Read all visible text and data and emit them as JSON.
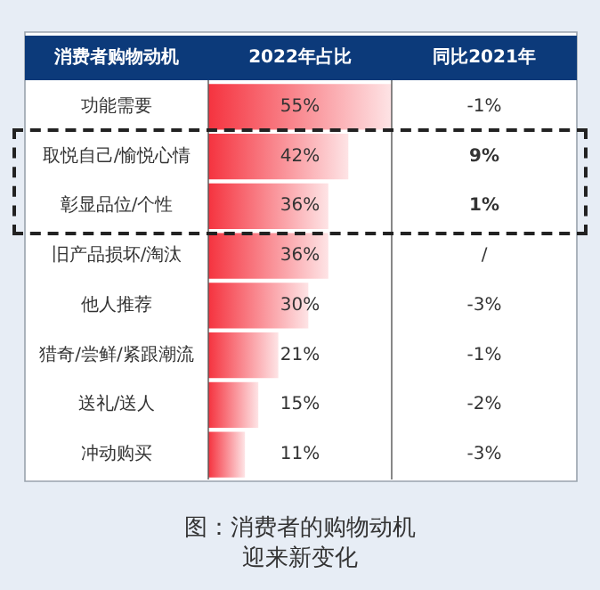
{
  "chart_data": {
    "type": "bar",
    "orientation": "horizontal",
    "title": "图：消费者的购物动机迎来新变化",
    "ylabel": "消费者购物动机",
    "xlabel": "2022年占比",
    "categories": [
      "功能需要",
      "取悦自己/愉悦心情",
      "彰显品位/个性",
      "旧产品损坏/淘汰",
      "他人推荐",
      "猎奇/尝鲜/紧跟潮流",
      "送礼/送人",
      "冲动购买"
    ],
    "values": [
      55,
      42,
      36,
      36,
      30,
      21,
      15,
      11
    ],
    "value_labels": [
      "55%",
      "42%",
      "36%",
      "36%",
      "30%",
      "21%",
      "15%",
      "11%"
    ],
    "color": "#f5333f",
    "annotations": [
      "同比2021年",
      "-1%",
      "9%",
      "1%",
      "/",
      "-3%",
      "-1%",
      "-2%",
      "-3%"
    ],
    "grid": false
  }
}
